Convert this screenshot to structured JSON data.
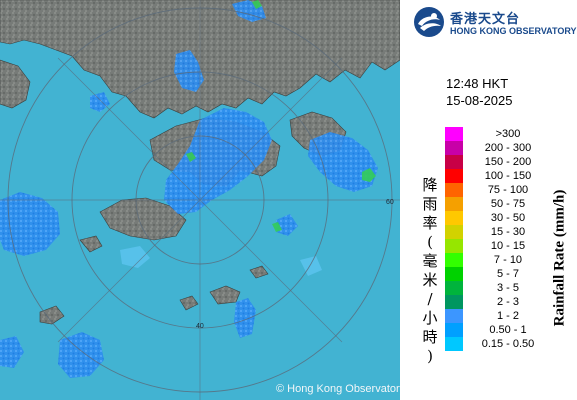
{
  "app": {
    "copyright": "© Hong Kong Observatory"
  },
  "logo": {
    "name_cn": "香港天文台",
    "name_en": "HONG KONG OBSERVATORY"
  },
  "radar": {
    "time": "12:48 HKT",
    "date": "15-08-2025",
    "range_ring_labels": [
      "40",
      "60"
    ],
    "colors": {
      "sea": "#44b8d6",
      "land": "#7a7e7a",
      "ring": "#5a6a7a"
    }
  },
  "legend": {
    "title_cn": [
      "降",
      "雨",
      "率",
      "(",
      "毫",
      "米",
      "/",
      "小",
      "時",
      ")"
    ],
    "unit": "Rainfall Rate (mm/h)",
    "levels": [
      {
        "label": ">300",
        "color": "#ff00ff"
      },
      {
        "label": "200 - 300",
        "color": "#c800a8"
      },
      {
        "label": "150 - 200",
        "color": "#c80046"
      },
      {
        "label": "100 - 150",
        "color": "#ff0000"
      },
      {
        "label": "75 - 100",
        "color": "#ff6400"
      },
      {
        "label": "50 - 75",
        "color": "#f5a000"
      },
      {
        "label": "30 - 50",
        "color": "#ffc800"
      },
      {
        "label": "15 - 30",
        "color": "#d2d200"
      },
      {
        "label": "10 - 15",
        "color": "#96e600"
      },
      {
        "label": "7 - 10",
        "color": "#32ff00"
      },
      {
        "label": "5 - 7",
        "color": "#00d200"
      },
      {
        "label": "3 - 5",
        "color": "#00b43c"
      },
      {
        "label": "2 - 3",
        "color": "#009660"
      },
      {
        "label": "1 - 2",
        "color": "#3c96ff"
      },
      {
        "label": "0.50 - 1",
        "color": "#00a0ff"
      },
      {
        "label": "0.15 - 0.50",
        "color": "#00c8ff"
      }
    ]
  }
}
